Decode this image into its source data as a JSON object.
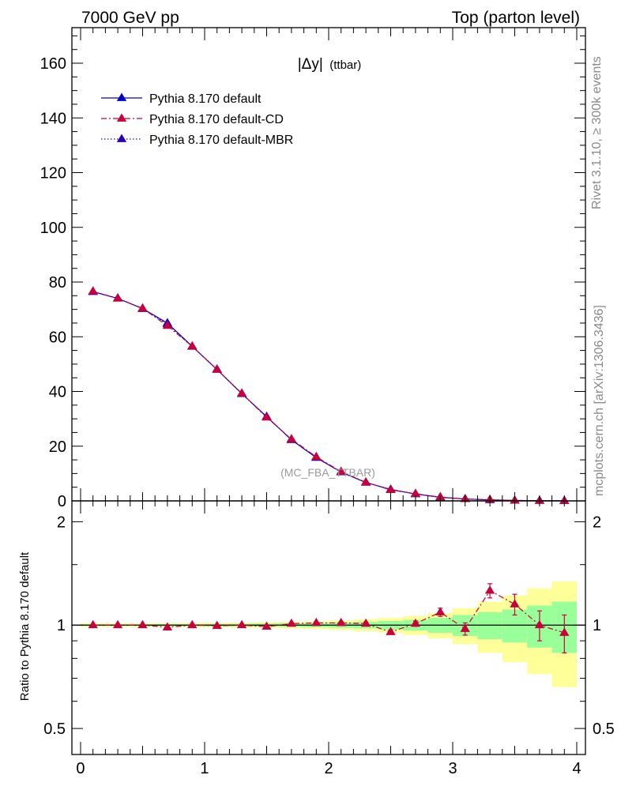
{
  "header": {
    "left": "7000 GeV pp",
    "right": "Top (parton level)"
  },
  "side_labels": {
    "rivet": "Rivet 3.1.10, ≥ 300k events",
    "mcplots": "mcplots.cern.ch [arXiv:1306.3436]"
  },
  "plot_title": {
    "main": "|Δy|",
    "sub": "(ttbar)"
  },
  "watermark": "(MC_FBA_TTBAR)",
  "ratio_ylabel": "Ratio to Pythia 8.170 default",
  "chart_data": [
    {
      "type": "line",
      "panel": "main",
      "xlim": [
        -0.07,
        4.07
      ],
      "ylim": [
        0,
        173
      ],
      "xticks": [
        0,
        1,
        2,
        3,
        4
      ],
      "yticks": [
        0,
        20,
        40,
        60,
        80,
        100,
        120,
        140,
        160
      ],
      "ytick_labels": [
        "0",
        "20",
        "40",
        "60",
        "80",
        "100",
        "120",
        "140",
        "160"
      ],
      "legend_position": "top-left",
      "x": [
        0.1,
        0.3,
        0.5,
        0.7,
        0.9,
        1.1,
        1.3,
        1.5,
        1.7,
        1.9,
        2.1,
        2.3,
        2.5,
        2.7,
        2.9,
        3.1,
        3.3,
        3.5,
        3.7,
        3.9
      ],
      "series": [
        {
          "name": "Pythia 8.170 default",
          "color": "#0000cc",
          "style": "solid",
          "values": [
            76.5,
            74.0,
            70.3,
            65.0,
            56.5,
            48.0,
            39.2,
            30.8,
            22.3,
            15.8,
            10.5,
            6.7,
            4.2,
            2.5,
            1.3,
            0.7,
            0.35,
            0.15,
            0.07,
            0.03
          ]
        },
        {
          "name": "Pythia 8.170 default-CD",
          "color": "#c8003c",
          "style": "dashdot",
          "values": [
            76.6,
            74.0,
            70.4,
            64.0,
            56.5,
            48.0,
            39.3,
            30.5,
            22.6,
            16.1,
            10.7,
            6.8,
            4.0,
            2.6,
            1.4,
            0.7,
            0.45,
            0.17,
            0.07,
            0.03
          ]
        },
        {
          "name": "Pythia 8.170 default-MBR",
          "color": "#2a00b4",
          "style": "dotted",
          "values": [
            76.4,
            74.1,
            70.2,
            64.6,
            56.4,
            48.1,
            39.1,
            30.7,
            22.4,
            15.9,
            10.6,
            6.75,
            4.1,
            2.55,
            1.35,
            0.7,
            0.38,
            0.16,
            0.07,
            0.03
          ]
        }
      ]
    },
    {
      "type": "line",
      "panel": "ratio",
      "ylabel": "Ratio to Pythia 8.170 default",
      "log_scale": true,
      "xlim": [
        -0.07,
        4.07
      ],
      "ylim": [
        0.42,
        2.3
      ],
      "xticks": [
        0,
        1,
        2,
        3,
        4
      ],
      "xtick_labels": [
        "0",
        "1",
        "2",
        "3",
        "4"
      ],
      "yticks": [
        0.5,
        1,
        2
      ],
      "ytick_labels": [
        "0.5",
        "1",
        "2"
      ],
      "bands": {
        "bin_edges": [
          0.0,
          0.2,
          0.4,
          0.6,
          0.8,
          1.0,
          1.2,
          1.4,
          1.6,
          1.8,
          2.0,
          2.2,
          2.4,
          2.6,
          2.8,
          3.0,
          3.2,
          3.4,
          3.6,
          3.8,
          4.0
        ],
        "inner_color": "#99ff99",
        "outer_color": "#ffff99",
        "inner_half_width": [
          0.006,
          0.006,
          0.006,
          0.007,
          0.007,
          0.008,
          0.009,
          0.01,
          0.012,
          0.014,
          0.018,
          0.022,
          0.028,
          0.036,
          0.05,
          0.07,
          0.09,
          0.11,
          0.14,
          0.17
        ],
        "outer_half_width": [
          0.012,
          0.012,
          0.012,
          0.013,
          0.014,
          0.015,
          0.017,
          0.019,
          0.022,
          0.026,
          0.032,
          0.04,
          0.05,
          0.064,
          0.085,
          0.12,
          0.17,
          0.22,
          0.28,
          0.34
        ]
      },
      "series": [
        {
          "name": "Pythia 8.170 default-CD",
          "color": "#c8003c",
          "x": [
            0.1,
            0.3,
            0.5,
            0.7,
            0.9,
            1.1,
            1.3,
            1.5,
            1.7,
            1.9,
            2.1,
            2.3,
            2.5,
            2.7,
            2.9,
            3.1,
            3.3,
            3.5,
            3.7,
            3.9
          ],
          "values": [
            1.0,
            1.0,
            1.0,
            0.985,
            1.0,
            0.995,
            1.0,
            0.99,
            1.01,
            1.015,
            1.015,
            1.01,
            0.955,
            1.01,
            1.09,
            0.975,
            1.26,
            1.15,
            1.0,
            0.95
          ],
          "errors": [
            0.003,
            0.003,
            0.003,
            0.003,
            0.003,
            0.004,
            0.004,
            0.005,
            0.006,
            0.007,
            0.009,
            0.011,
            0.014,
            0.018,
            0.03,
            0.04,
            0.06,
            0.08,
            0.1,
            0.12
          ]
        }
      ]
    }
  ]
}
